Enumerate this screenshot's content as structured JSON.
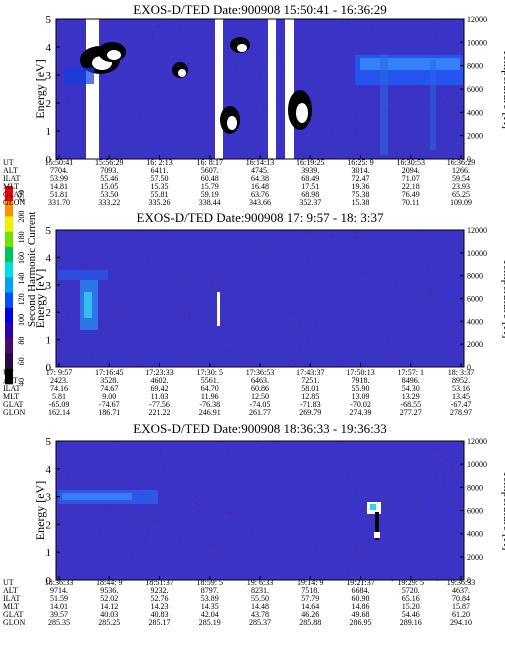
{
  "colorbar": {
    "label": "Second Harmonic Current",
    "ticks": [
      "40",
      "60",
      "80",
      "100",
      "120",
      "140",
      "160",
      "180",
      "200",
      "250"
    ],
    "colors": [
      "#000000",
      "#2b0a3d",
      "#4b0a6e",
      "#2d00a8",
      "#0000e0",
      "#0050ff",
      "#00a0ff",
      "#00e0e0",
      "#00c060",
      "#70e000",
      "#f0f000",
      "#ff9000",
      "#ff0000"
    ]
  },
  "chart_data": [
    {
      "type": "heatmap",
      "title": "EXOS-D/TED   Date:900908   15:50:41 - 16:36:29",
      "ylabel": "Energy [eV]",
      "y2label": "Temperature [K]",
      "ylim": [
        0,
        5
      ],
      "y2lim": [
        0,
        12000
      ],
      "yticks": [
        "0",
        "1",
        "2",
        "3",
        "4",
        "5"
      ],
      "y2ticks": [
        "0",
        "2000",
        "4000",
        "6000",
        "8000",
        "10000",
        "12000"
      ],
      "background": "#3b32c6",
      "rows": [
        {
          "name": "UT",
          "values": [
            "15:50:41",
            "15:56:29",
            "16: 2:13",
            "16: 8:17",
            "16:14:13",
            "16:19:25",
            "16:25: 9",
            "16:30:53",
            "16:36:29"
          ]
        },
        {
          "name": "ALT",
          "values": [
            "7704.",
            "7093.",
            "6411.",
            "5607.",
            "4745.",
            "3939.",
            "3014.",
            "2094.",
            "1266."
          ]
        },
        {
          "name": "ILAT",
          "values": [
            "53.99",
            "55.46",
            "57.50",
            "60.48",
            "64.38",
            "68.49",
            "72.47",
            "71.07",
            "59.54"
          ]
        },
        {
          "name": "MLT",
          "values": [
            "14.81",
            "15.05",
            "15.35",
            "15.79",
            "16.48",
            "17.51",
            "19.36",
            "22.18",
            "23.93"
          ]
        },
        {
          "name": "GLAT",
          "values": [
            "51.81",
            "53.50",
            "55.81",
            "59.19",
            "63.76",
            "68.98",
            "75.38",
            "76.49",
            "65.25"
          ]
        },
        {
          "name": "GLON",
          "values": [
            "331.70",
            "333.22",
            "335.26",
            "338.44",
            "343.66",
            "352.37",
            "15.38",
            "70.11",
            "109.09"
          ]
        }
      ]
    },
    {
      "type": "heatmap",
      "title": "EXOS-D/TED   Date:900908   17: 9:57 - 18: 3:37",
      "ylabel": "Energy [eV]",
      "y2label": "Temperature [K]",
      "ylim": [
        0,
        5
      ],
      "y2lim": [
        0,
        12000
      ],
      "yticks": [
        "0",
        "1",
        "2",
        "3",
        "4",
        "5"
      ],
      "y2ticks": [
        "0",
        "2000",
        "4000",
        "6000",
        "8000",
        "10000",
        "12000"
      ],
      "background": "#3b32c6",
      "rows": [
        {
          "name": "UT",
          "values": [
            "17: 9:57",
            "17:16:45",
            "17:23:33",
            "17:30: 5",
            "17:36:53",
            "17:43:37",
            "17:50:13",
            "17:57: 1",
            "18: 3:37"
          ]
        },
        {
          "name": "ALT",
          "values": [
            "2423.",
            "3528.",
            "4602.",
            "5561.",
            "6463.",
            "7251.",
            "7918.",
            "8496.",
            "8952."
          ]
        },
        {
          "name": "ILAT",
          "values": [
            "74.16",
            "74.67",
            "69.42",
            "64.70",
            "60.86",
            "58.01",
            "55.90",
            "54.30",
            "53.16"
          ]
        },
        {
          "name": "MLT",
          "values": [
            "5.81",
            "9.00",
            "11.03",
            "11.96",
            "12.50",
            "12.85",
            "13.09",
            "13.29",
            "13.45"
          ]
        },
        {
          "name": "GLAT",
          "values": [
            "-65.09",
            "-74.67",
            "-77.56",
            "-76.38",
            "-74.05",
            "-71.83",
            "-70.02",
            "-68.55",
            "-67.47"
          ]
        },
        {
          "name": "GLON",
          "values": [
            "162.14",
            "186.71",
            "221.22",
            "246.91",
            "261.77",
            "269.79",
            "274.39",
            "277.27",
            "278.97"
          ]
        }
      ]
    },
    {
      "type": "heatmap",
      "title": "EXOS-D/TED   Date:900908   18:36:33 - 19:36:33",
      "ylabel": "Energy [eV]",
      "y2label": "Temperature [K]",
      "ylim": [
        0,
        5
      ],
      "y2lim": [
        0,
        12000
      ],
      "yticks": [
        "0",
        "1",
        "2",
        "3",
        "4",
        "5"
      ],
      "y2ticks": [
        "0",
        "2000",
        "4000",
        "6000",
        "8000",
        "10000",
        "12000"
      ],
      "background": "#3b32c6",
      "rows": [
        {
          "name": "UT",
          "values": [
            "18:36:33",
            "18:44: 9",
            "18:51:37",
            "18:59: 5",
            "19: 6:33",
            "19:14: 9",
            "19:21:37",
            "19:29: 5",
            "19:36:33"
          ]
        },
        {
          "name": "ALT",
          "values": [
            "9714.",
            "9536.",
            "9232.",
            "8797.",
            "8231.",
            "7518.",
            "6684.",
            "5720.",
            "4637."
          ]
        },
        {
          "name": "ILAT",
          "values": [
            "51.59",
            "52.02",
            "52.76",
            "53.89",
            "55.50",
            "57.79",
            "60.90",
            "65.16",
            "70.84"
          ]
        },
        {
          "name": "MLT",
          "values": [
            "14.01",
            "14.12",
            "14.23",
            "14.35",
            "14.48",
            "14.64",
            "14.86",
            "15.20",
            "15.87"
          ]
        },
        {
          "name": "GLAT",
          "values": [
            "39.57",
            "40.03",
            "40.83",
            "42.04",
            "43.78",
            "46.26",
            "49.68",
            "54.46",
            "61.20"
          ]
        },
        {
          "name": "GLON",
          "values": [
            "285.35",
            "285.25",
            "285.17",
            "285.19",
            "285.37",
            "285.88",
            "286.95",
            "289.16",
            "294.10"
          ]
        }
      ]
    }
  ]
}
